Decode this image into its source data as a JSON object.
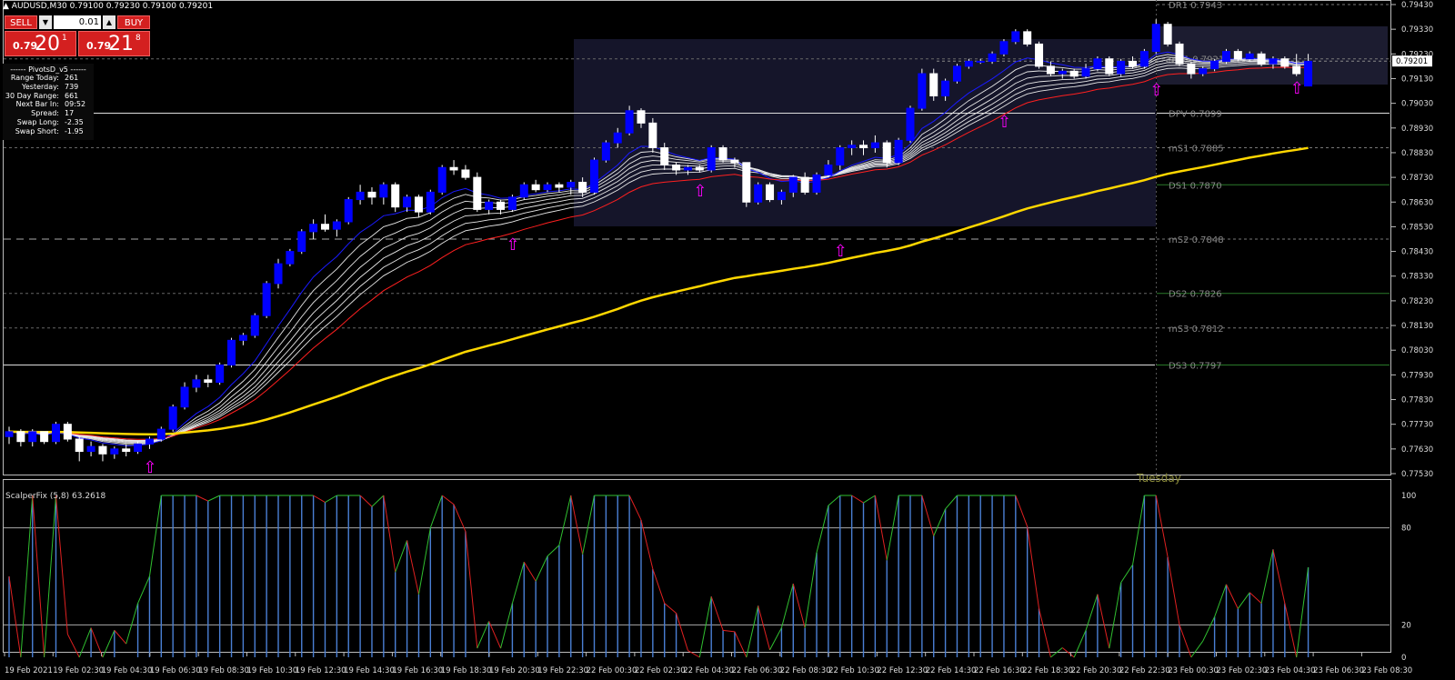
{
  "header": {
    "title": "▲ AUDUSD,M30  0.79100 0.79230 0.79100 0.79201"
  },
  "trade_panel": {
    "sell_label": "SELL",
    "buy_label": "BUY",
    "lot_value": "0.01",
    "sell_small": "0.79",
    "sell_big": "20",
    "sell_sup": "1",
    "buy_small": "0.79",
    "buy_big": "21",
    "buy_sup": "8",
    "dropdown_glyph": "▼",
    "up_glyph": "▲"
  },
  "pivot_info": {
    "header": "------ PivotsD_v5 ------",
    "rows": [
      {
        "key": "Range Today:",
        "value": "261"
      },
      {
        "key": "Yesterday:",
        "value": "739"
      },
      {
        "key": "30 Day Range:",
        "value": "661"
      },
      {
        "key": "Next Bar In:",
        "value": "09:52"
      },
      {
        "key": "Spread:",
        "value": "17"
      },
      {
        "key": "Swap Long:",
        "value": "-2.35"
      },
      {
        "key": "Swap Short:",
        "value": "-1.95"
      }
    ]
  },
  "price_axis": {
    "labels": [
      "0.79430",
      "0.79330",
      "0.79230",
      "0.79130",
      "0.79030",
      "0.78930",
      "0.78830",
      "0.78730",
      "0.78630",
      "0.78530",
      "0.78430",
      "0.78330",
      "0.78230",
      "0.78130",
      "0.78030",
      "0.77930",
      "0.77830",
      "0.77730",
      "0.77630",
      "0.77530"
    ],
    "current_price": "0.79201"
  },
  "pivot_levels": [
    {
      "name": "DR1",
      "value": "0.7943"
    },
    {
      "name": "mR1",
      "value": "0.7921"
    },
    {
      "name": "DPV",
      "value": "0.7899"
    },
    {
      "name": "mS1",
      "value": "0.7885"
    },
    {
      "name": "DS1",
      "value": "0.7870"
    },
    {
      "name": "mS2",
      "value": "0.7848"
    },
    {
      "name": "DS2",
      "value": "0.7826"
    },
    {
      "name": "mS3",
      "value": "0.7812"
    },
    {
      "name": "DS3",
      "value": "0.7797"
    }
  ],
  "day_label": "Tuesday",
  "indicator": {
    "name": "ScalperFix (5,8) 63.2618",
    "axis_labels": [
      "100",
      "80",
      "20",
      "0"
    ]
  },
  "time_axis": [
    "19 Feb 2021",
    "19 Feb 02:30",
    "19 Feb 04:30",
    "19 Feb 06:30",
    "19 Feb 08:30",
    "19 Feb 10:30",
    "19 Feb 12:30",
    "19 Feb 14:30",
    "19 Feb 16:30",
    "19 Feb 18:30",
    "19 Feb 20:30",
    "19 Feb 22:30",
    "22 Feb 00:30",
    "22 Feb 02:30",
    "22 Feb 04:30",
    "22 Feb 06:30",
    "22 Feb 08:30",
    "22 Feb 10:30",
    "22 Feb 12:30",
    "22 Feb 14:30",
    "22 Feb 16:30",
    "22 Feb 18:30",
    "22 Feb 20:30",
    "22 Feb 22:30",
    "23 Feb 00:30",
    "23 Feb 02:30",
    "23 Feb 04:30",
    "23 Feb 06:30",
    "23 Feb 08:30"
  ],
  "colors": {
    "bull_candle": "#ffffff",
    "bear_candle": "#0000ff",
    "ma_yellow": "#ffd700",
    "ma_red": "#ff2020",
    "ma_blue": "#1a1aff",
    "arrow": "#ff00ff",
    "indicator_bar": "#4a7fd4",
    "indicator_up": "#30c030",
    "indicator_down": "#e02020"
  },
  "chart_data": {
    "type": "candlestick",
    "symbol": "AUDUSD",
    "timeframe": "M30",
    "ylim": [
      0.7753,
      0.7943
    ],
    "candles": [
      [
        0.7768,
        0.7772,
        0.7765,
        0.777
      ],
      [
        0.777,
        0.7771,
        0.7764,
        0.7766
      ],
      [
        0.7766,
        0.7771,
        0.7764,
        0.777
      ],
      [
        0.777,
        0.777,
        0.7765,
        0.7766
      ],
      [
        0.7766,
        0.7774,
        0.7765,
        0.7773
      ],
      [
        0.7773,
        0.7774,
        0.7766,
        0.7767
      ],
      [
        0.7767,
        0.7768,
        0.7758,
        0.7762
      ],
      [
        0.7762,
        0.7766,
        0.776,
        0.7764
      ],
      [
        0.7764,
        0.7765,
        0.7758,
        0.7761
      ],
      [
        0.7761,
        0.7764,
        0.7759,
        0.7763
      ],
      [
        0.7763,
        0.7765,
        0.776,
        0.7762
      ],
      [
        0.7762,
        0.7766,
        0.7761,
        0.7765
      ],
      [
        0.7765,
        0.7768,
        0.7763,
        0.7767
      ],
      [
        0.7767,
        0.7772,
        0.7766,
        0.7771
      ],
      [
        0.7771,
        0.7781,
        0.777,
        0.778
      ],
      [
        0.778,
        0.779,
        0.7779,
        0.7788
      ],
      [
        0.7788,
        0.7793,
        0.7786,
        0.7791
      ],
      [
        0.7791,
        0.7793,
        0.7788,
        0.779
      ],
      [
        0.779,
        0.7798,
        0.7789,
        0.7797
      ],
      [
        0.7797,
        0.7808,
        0.7796,
        0.7807
      ],
      [
        0.7807,
        0.781,
        0.7805,
        0.7809
      ],
      [
        0.7809,
        0.7818,
        0.7808,
        0.7817
      ],
      [
        0.7817,
        0.7831,
        0.7816,
        0.783
      ],
      [
        0.783,
        0.784,
        0.7828,
        0.7838
      ],
      [
        0.7838,
        0.7844,
        0.7837,
        0.7843
      ],
      [
        0.7843,
        0.7852,
        0.7842,
        0.7851
      ],
      [
        0.7851,
        0.7856,
        0.7848,
        0.7854
      ],
      [
        0.7854,
        0.7858,
        0.7851,
        0.7852
      ],
      [
        0.7852,
        0.7856,
        0.7849,
        0.7855
      ],
      [
        0.7855,
        0.7865,
        0.7854,
        0.7864
      ],
      [
        0.7864,
        0.787,
        0.7862,
        0.7867
      ],
      [
        0.7867,
        0.7869,
        0.7862,
        0.7865
      ],
      [
        0.7865,
        0.7871,
        0.7862,
        0.787
      ],
      [
        0.787,
        0.7871,
        0.7859,
        0.7861
      ],
      [
        0.7861,
        0.7866,
        0.7859,
        0.7865
      ],
      [
        0.7865,
        0.7866,
        0.7857,
        0.7859
      ],
      [
        0.7859,
        0.7868,
        0.7858,
        0.7867
      ],
      [
        0.7867,
        0.7878,
        0.7866,
        0.7877
      ],
      [
        0.7877,
        0.788,
        0.7874,
        0.7876
      ],
      [
        0.7876,
        0.7878,
        0.7872,
        0.7873
      ],
      [
        0.7873,
        0.7875,
        0.7859,
        0.786
      ],
      [
        0.786,
        0.7864,
        0.7858,
        0.7863
      ],
      [
        0.7863,
        0.7864,
        0.7858,
        0.786
      ],
      [
        0.786,
        0.7866,
        0.7859,
        0.7865
      ],
      [
        0.7865,
        0.7871,
        0.7864,
        0.787
      ],
      [
        0.787,
        0.7872,
        0.7867,
        0.7868
      ],
      [
        0.7868,
        0.7871,
        0.7867,
        0.787
      ],
      [
        0.787,
        0.7871,
        0.7867,
        0.7869
      ],
      [
        0.7869,
        0.7872,
        0.7866,
        0.7871
      ],
      [
        0.7871,
        0.7873,
        0.7865,
        0.7867
      ],
      [
        0.7867,
        0.7881,
        0.7866,
        0.788
      ],
      [
        0.788,
        0.7888,
        0.7879,
        0.7887
      ],
      [
        0.7887,
        0.7893,
        0.7885,
        0.7891
      ],
      [
        0.7891,
        0.7902,
        0.789,
        0.79
      ],
      [
        0.79,
        0.7901,
        0.7893,
        0.7895
      ],
      [
        0.7895,
        0.7897,
        0.7883,
        0.7885
      ],
      [
        0.7885,
        0.7887,
        0.7876,
        0.7878
      ],
      [
        0.7878,
        0.7879,
        0.7874,
        0.7876
      ],
      [
        0.7876,
        0.7878,
        0.7874,
        0.7877
      ],
      [
        0.7877,
        0.7878,
        0.7875,
        0.7876
      ],
      [
        0.7876,
        0.7886,
        0.7875,
        0.7885
      ],
      [
        0.7885,
        0.7886,
        0.7879,
        0.788
      ],
      [
        0.788,
        0.7881,
        0.7877,
        0.7879
      ],
      [
        0.7879,
        0.7879,
        0.7861,
        0.7863
      ],
      [
        0.7863,
        0.7871,
        0.7862,
        0.787
      ],
      [
        0.787,
        0.7871,
        0.7863,
        0.7864
      ],
      [
        0.7864,
        0.7868,
        0.7862,
        0.7867
      ],
      [
        0.7867,
        0.7874,
        0.7865,
        0.7873
      ],
      [
        0.7873,
        0.7875,
        0.7866,
        0.7867
      ],
      [
        0.7867,
        0.7875,
        0.7866,
        0.7874
      ],
      [
        0.7874,
        0.788,
        0.7873,
        0.7878
      ],
      [
        0.7878,
        0.7886,
        0.7876,
        0.7885
      ],
      [
        0.7885,
        0.7888,
        0.7882,
        0.7886
      ],
      [
        0.7886,
        0.7888,
        0.7882,
        0.7885
      ],
      [
        0.7885,
        0.789,
        0.7883,
        0.7887
      ],
      [
        0.7887,
        0.7888,
        0.7877,
        0.7879
      ],
      [
        0.7879,
        0.7889,
        0.7878,
        0.7888
      ],
      [
        0.7888,
        0.7902,
        0.7887,
        0.7901
      ],
      [
        0.7901,
        0.7917,
        0.79,
        0.7915
      ],
      [
        0.7915,
        0.7917,
        0.7904,
        0.7906
      ],
      [
        0.7906,
        0.7913,
        0.7904,
        0.7912
      ],
      [
        0.7912,
        0.7919,
        0.7911,
        0.7918
      ],
      [
        0.7918,
        0.7921,
        0.7917,
        0.792
      ],
      [
        0.792,
        0.7921,
        0.7919,
        0.792
      ],
      [
        0.792,
        0.7924,
        0.7919,
        0.7923
      ],
      [
        0.7923,
        0.7929,
        0.7922,
        0.7928
      ],
      [
        0.7928,
        0.7933,
        0.7927,
        0.7932
      ],
      [
        0.7932,
        0.7933,
        0.7926,
        0.7927
      ],
      [
        0.7927,
        0.7928,
        0.7917,
        0.7918
      ],
      [
        0.7918,
        0.792,
        0.7914,
        0.7915
      ],
      [
        0.7915,
        0.7917,
        0.7913,
        0.7916
      ],
      [
        0.7916,
        0.7917,
        0.7913,
        0.7914
      ],
      [
        0.7914,
        0.7919,
        0.7913,
        0.7917
      ],
      [
        0.7917,
        0.7922,
        0.7916,
        0.7921
      ],
      [
        0.7921,
        0.7922,
        0.7914,
        0.7915
      ],
      [
        0.7915,
        0.7921,
        0.7914,
        0.792
      ],
      [
        0.792,
        0.7922,
        0.7917,
        0.7918
      ],
      [
        0.7918,
        0.7925,
        0.7917,
        0.7924
      ],
      [
        0.7924,
        0.7937,
        0.7923,
        0.7935
      ],
      [
        0.7935,
        0.7936,
        0.7926,
        0.7927
      ],
      [
        0.7927,
        0.7928,
        0.7918,
        0.7919
      ],
      [
        0.7919,
        0.792,
        0.7913,
        0.7915
      ],
      [
        0.7915,
        0.7918,
        0.7914,
        0.7917
      ],
      [
        0.7917,
        0.7921,
        0.7916,
        0.792
      ],
      [
        0.792,
        0.7925,
        0.7919,
        0.7924
      ],
      [
        0.7924,
        0.7925,
        0.792,
        0.7921
      ],
      [
        0.7921,
        0.7924,
        0.792,
        0.7923
      ],
      [
        0.7923,
        0.7924,
        0.7918,
        0.7919
      ],
      [
        0.7919,
        0.7922,
        0.7917,
        0.7921
      ],
      [
        0.7921,
        0.7922,
        0.7917,
        0.7918
      ],
      [
        0.7918,
        0.7923,
        0.7914,
        0.7915
      ],
      [
        0.791,
        0.7923,
        0.791,
        0.792
      ]
    ]
  }
}
